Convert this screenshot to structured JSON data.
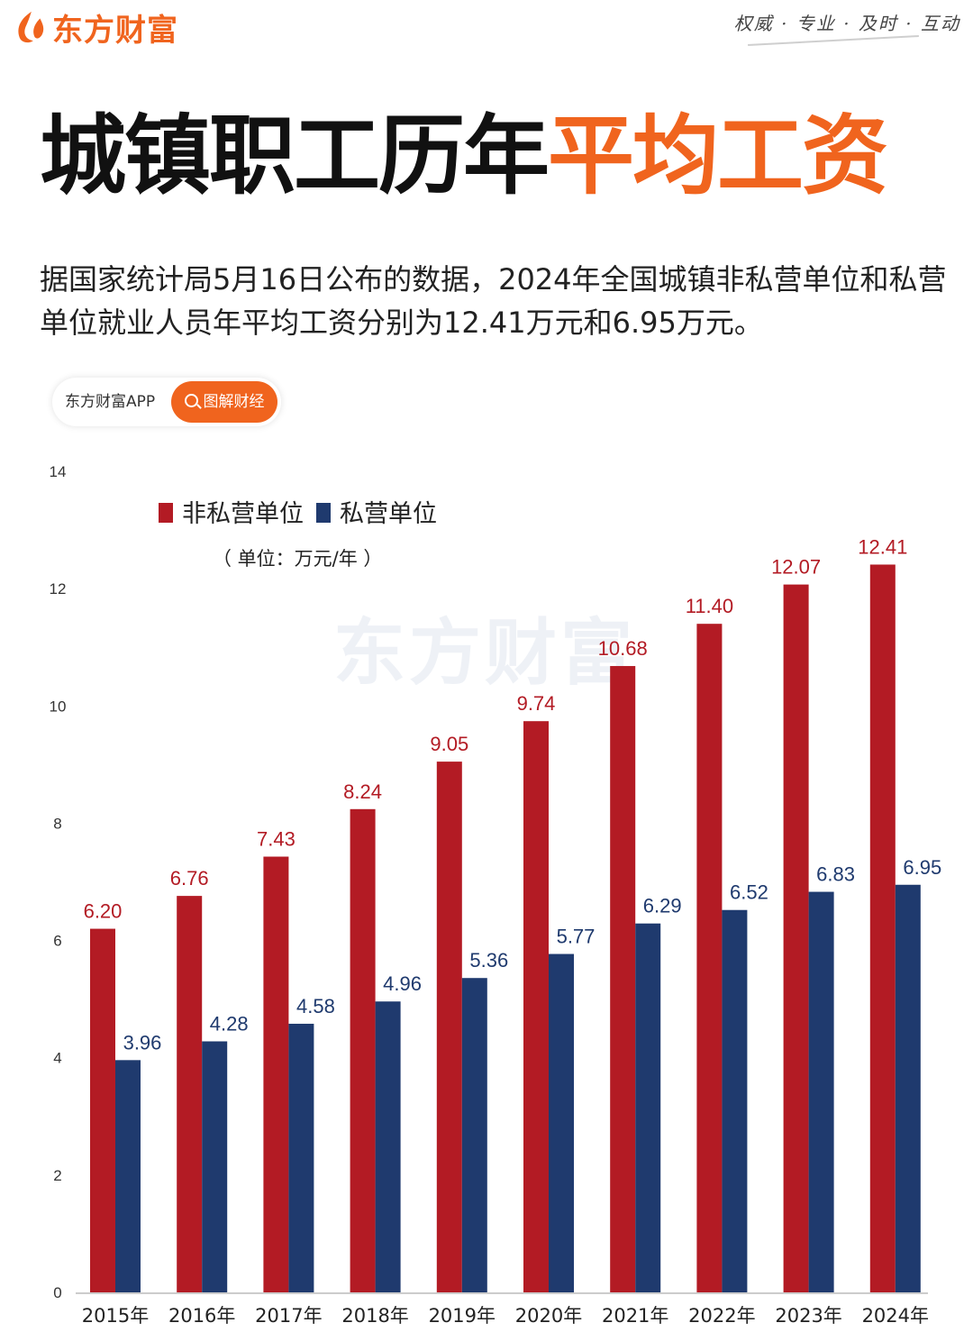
{
  "header": {
    "brand_name": "东方财富",
    "slogan": "权威 · 专业 · 及时 · 互动"
  },
  "headline": {
    "part1": "城镇职工历年",
    "part2": "平均工资"
  },
  "intro": "据国家统计局5月16日公布的数据，2024年全国城镇非私营单位和私营单位就业人员年平均工资分别为12.41万元和6.95万元。",
  "badge": {
    "source": "东方财富APP",
    "button_label": "图解财经"
  },
  "watermark": "东方财富",
  "colors": {
    "brand_orange": "#f0641e",
    "series_non_private": "#b31b24",
    "series_private": "#1f3a6e"
  },
  "chart_data": {
    "type": "bar",
    "unit_note": "（ 单位：万元/年 ）",
    "categories": [
      "2015年",
      "2016年",
      "2017年",
      "2018年",
      "2019年",
      "2020年",
      "2021年",
      "2022年",
      "2023年",
      "2024年"
    ],
    "series": [
      {
        "name": "非私营单位",
        "values": [
          6.2,
          6.76,
          7.43,
          8.24,
          9.05,
          9.74,
          10.68,
          11.4,
          12.07,
          12.41
        ],
        "labels": [
          "6.20",
          "6.76",
          "7.43",
          "8.24",
          "9.05",
          "9.74",
          "10.68",
          "11.40",
          "12.07",
          "12.41"
        ]
      },
      {
        "name": "私营单位",
        "values": [
          3.96,
          4.28,
          4.58,
          4.96,
          5.36,
          5.77,
          6.29,
          6.52,
          6.83,
          6.95
        ],
        "labels": [
          "3.96",
          "4.28",
          "4.58",
          "4.96",
          "5.36",
          "5.77",
          "6.29",
          "6.52",
          "6.83",
          "6.95"
        ]
      }
    ],
    "ylim": [
      0,
      14
    ],
    "yticks": [
      "0",
      "2",
      "4",
      "6",
      "8",
      "10",
      "12",
      "14"
    ],
    "grid": false,
    "legend_position": "top-left"
  }
}
